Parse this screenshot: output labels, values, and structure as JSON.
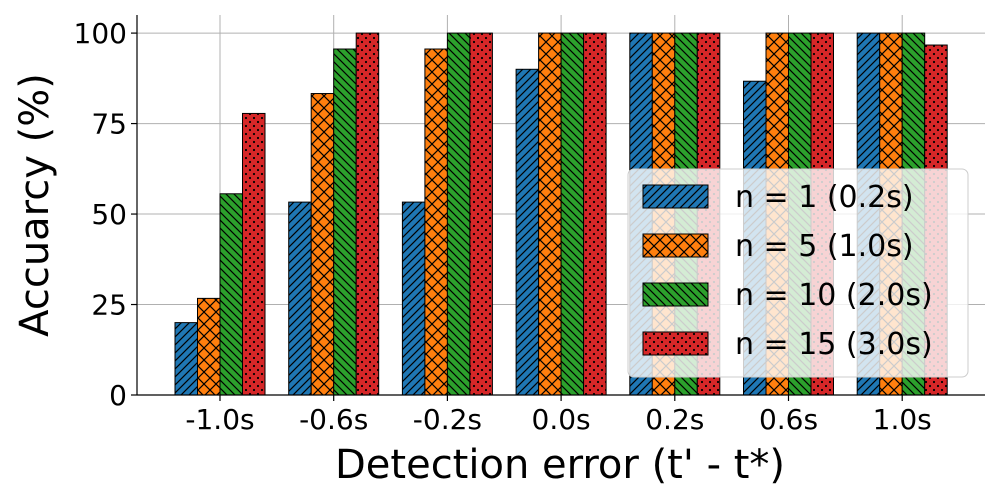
{
  "chart_data": {
    "type": "bar",
    "title": "",
    "xlabel": "Detection error (t' - t*)",
    "ylabel": "Accuarcy (%)",
    "ylim": [
      0,
      105
    ],
    "yticks": [
      0,
      25,
      50,
      75,
      100
    ],
    "grid": true,
    "legend_position": "right",
    "categories": [
      "-1.0s",
      "-0.6s",
      "-0.2s",
      "0.0s",
      "0.2s",
      "0.6s",
      "1.0s"
    ],
    "series": [
      {
        "name": "n = 1 (0.2s)",
        "color": "#1f77b4",
        "hatch": "diagonal",
        "values": [
          20,
          53.3,
          53.3,
          90,
          100,
          86.7,
          100
        ]
      },
      {
        "name": "n = 5 (1.0s)",
        "color": "#ff7f0e",
        "hatch": "cross",
        "values": [
          26.7,
          83.3,
          95.6,
          100,
          100,
          100,
          100
        ]
      },
      {
        "name": "n = 10 (2.0s)",
        "color": "#2ca02c",
        "hatch": "backdiagonal",
        "values": [
          55.6,
          95.6,
          100,
          100,
          100,
          100,
          100
        ]
      },
      {
        "name": "n = 15 (3.0s)",
        "color": "#d62728",
        "hatch": "dots",
        "values": [
          77.8,
          100,
          100,
          100,
          100,
          100,
          96.7
        ]
      }
    ]
  }
}
